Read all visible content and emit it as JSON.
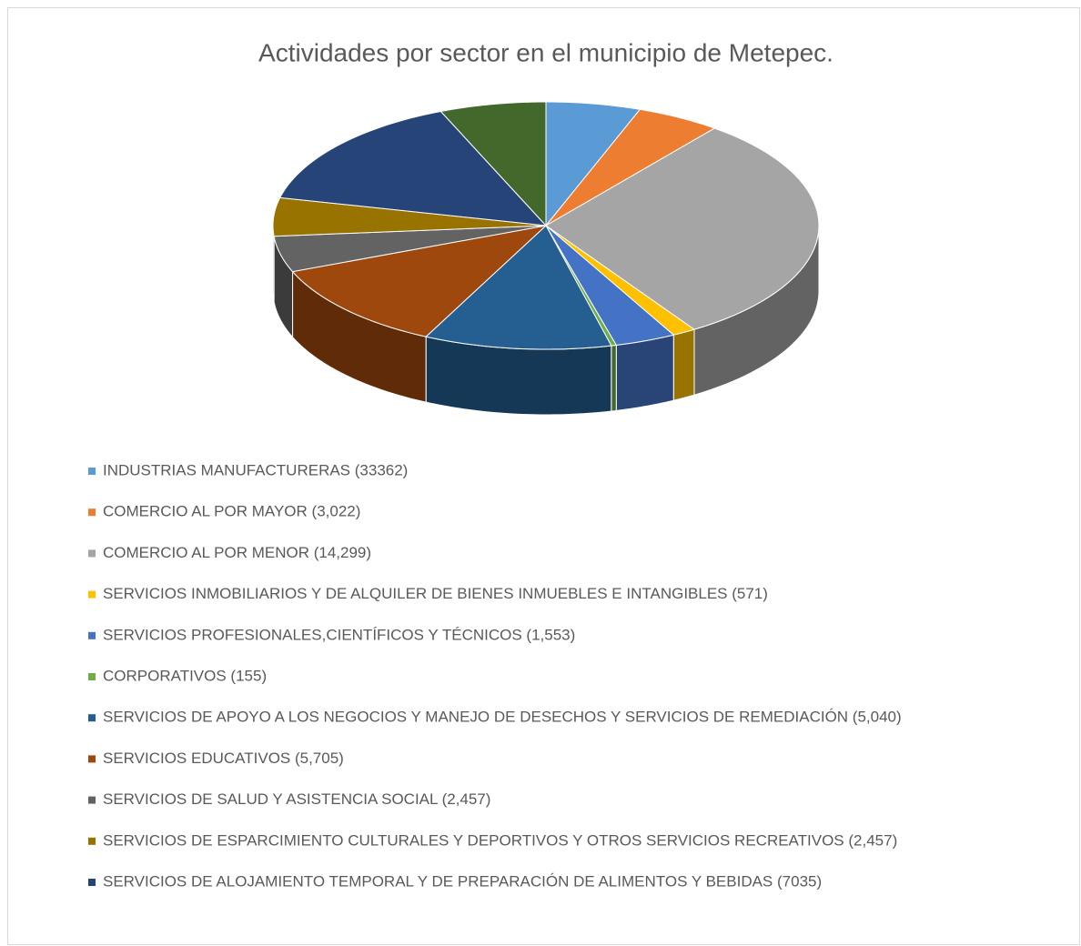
{
  "chart_data": {
    "type": "pie",
    "title": "Actividades por sector en el municipio de Metepec.",
    "categories": [
      "INDUSTRIAS MANUFACTURERAS (33362)",
      "COMERCIO AL POR MAYOR (3,022)",
      "COMERCIO AL POR MENOR (14,299)",
      "SERVICIOS INMOBILIARIOS Y DE ALQUILER DE BIENES INMUEBLES E INTANGIBLES (571)",
      "SERVICIOS PROFESIONALES,CIENTÍFICOS Y TÉCNICOS (1,553)",
      "CORPORATIVOS (155)",
      "SERVICIOS DE APOYO A LOS NEGOCIOS Y MANEJO DE DESECHOS Y SERVICIOS DE REMEDIACIÓN (5,040)",
      "SERVICIOS EDUCATIVOS (5,705)",
      "SERVICIOS DE SALUD Y ASISTENCIA SOCIAL (2,457)",
      "SERVICIOS DE ESPARCIMIENTO CULTURALES Y DEPORTIVOS Y OTROS SERVICIOS RECREATIVOS (2,457)",
      "SERVICIOS DE ALOJAMIENTO TEMPORAL Y DE PREPARACIÓN DE ALIMENTOS Y BEBIDAS (7035)",
      null
    ],
    "values": [
      5.6,
      5.0,
      30.3,
      1.4,
      3.6,
      0.3,
      11.1,
      11.7,
      4.7,
      5.0,
      15.1,
      6.3
    ],
    "colors": [
      "#5b9bd5",
      "#ed7d31",
      "#a5a5a5",
      "#ffc000",
      "#4472c4",
      "#70ad47",
      "#255e91",
      "#9e480e",
      "#636363",
      "#997300",
      "#264478",
      "#43682b"
    ],
    "legend": "bottom"
  }
}
